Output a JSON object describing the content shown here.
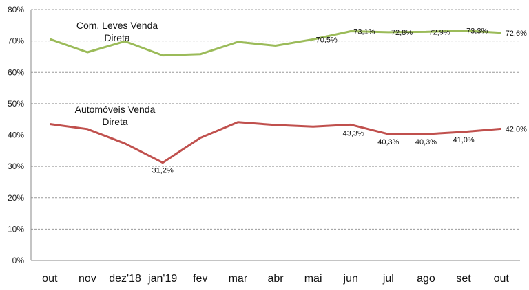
{
  "chart_data": {
    "type": "line",
    "title": "",
    "xlabel": "",
    "ylabel": "",
    "categories": [
      "out",
      "nov",
      "dez'18",
      "jan'19",
      "fev",
      "mar",
      "abr",
      "mai",
      "jun",
      "jul",
      "ago",
      "set",
      "out"
    ],
    "ylim": [
      0,
      80
    ],
    "yticks": [
      "0%",
      "10%",
      "20%",
      "30%",
      "40%",
      "50%",
      "60%",
      "70%",
      "80%"
    ],
    "grid": true,
    "legend": "none",
    "series": [
      {
        "name_lines": [
          "Com. Leves Venda",
          "Direta"
        ],
        "color": "#9BBB59",
        "values": [
          70.6,
          66.4,
          69.9,
          65.4,
          65.8,
          69.7,
          68.5,
          70.5,
          73.1,
          72.8,
          72.9,
          73.3,
          72.6
        ],
        "labels": [
          "",
          "",
          "",
          "",
          "",
          "",
          "",
          "70,5%",
          "73,1%",
          "72,8%",
          "72,9%",
          "73,3%",
          "72,6%"
        ]
      },
      {
        "name_lines": [
          "Automóveis Venda",
          "Direta"
        ],
        "color": "#C0504D",
        "values": [
          43.5,
          41.9,
          37.3,
          31.2,
          39.1,
          44.1,
          43.2,
          42.7,
          43.3,
          40.3,
          40.3,
          41.0,
          42.0
        ],
        "labels": [
          "",
          "",
          "",
          "31,2%",
          "",
          "",
          "",
          "",
          "43,3%",
          "40,3%",
          "40,3%",
          "41,0%",
          "42,0%"
        ]
      }
    ]
  }
}
